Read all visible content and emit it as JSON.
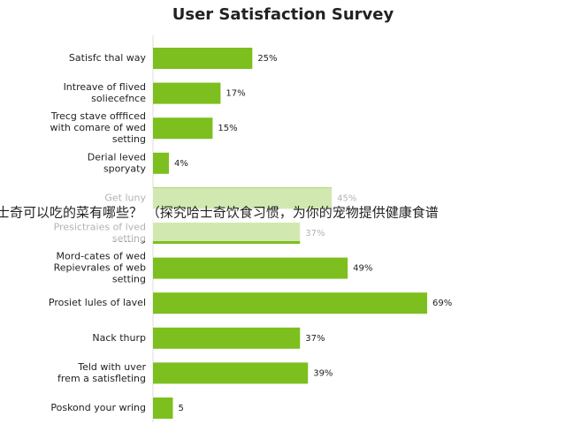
{
  "chart_data": {
    "type": "bar",
    "orientation": "horizontal",
    "title": "User Satisfaction Survey",
    "categories": [
      [
        "Satisfc thal way"
      ],
      [
        "Intreave of flived",
        "soliecefnce"
      ],
      [
        "Trecg stave offficed",
        "with comare of wed",
        "setting"
      ],
      [
        "Derial leved",
        "sporyaty"
      ],
      [
        "Get luny"
      ],
      [
        "Presictraies of lved",
        "setting"
      ],
      [
        "Mord-cates of wed",
        "Repievrales of web",
        "setting"
      ],
      [
        "Prosiet lules of lavel"
      ],
      [
        "Nack thurp"
      ],
      [
        "Teld with uver",
        "frem a satisfleting"
      ],
      [
        "Poskond your wring"
      ]
    ],
    "values": [
      25,
      17,
      15,
      4,
      45,
      37,
      49,
      69,
      37,
      39,
      5
    ],
    "value_labels": [
      "25%",
      "17%",
      "15%",
      "4%",
      "45%",
      "37%",
      "49%",
      "69%",
      "37%",
      "39%",
      "5"
    ],
    "color": "#7cbf1e"
  },
  "overlay_text": "士奇可以吃的菜有哪些？ （探究哈士奇饮食习惯，为你的宠物提供健康食谱"
}
